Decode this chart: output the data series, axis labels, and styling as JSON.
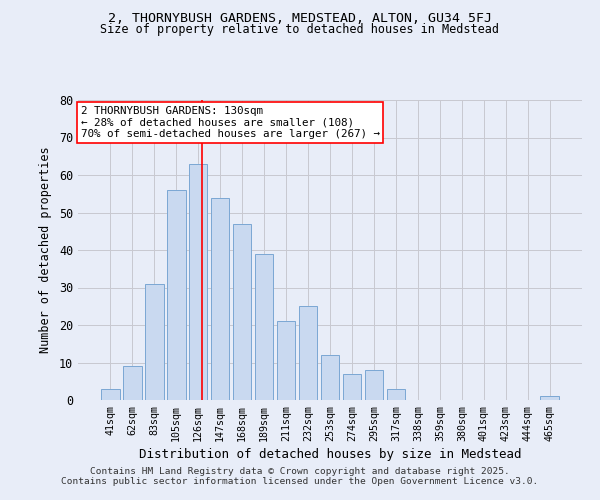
{
  "title1": "2, THORNYBUSH GARDENS, MEDSTEAD, ALTON, GU34 5FJ",
  "title2": "Size of property relative to detached houses in Medstead",
  "xlabel": "Distribution of detached houses by size in Medstead",
  "ylabel": "Number of detached properties",
  "bin_labels": [
    "41sqm",
    "62sqm",
    "83sqm",
    "105sqm",
    "126sqm",
    "147sqm",
    "168sqm",
    "189sqm",
    "211sqm",
    "232sqm",
    "253sqm",
    "274sqm",
    "295sqm",
    "317sqm",
    "338sqm",
    "359sqm",
    "380sqm",
    "401sqm",
    "423sqm",
    "444sqm",
    "465sqm"
  ],
  "values": [
    3,
    9,
    31,
    56,
    63,
    54,
    47,
    39,
    21,
    25,
    12,
    7,
    8,
    3,
    0,
    0,
    0,
    0,
    0,
    0,
    1
  ],
  "bar_color": "#c9d9f0",
  "bar_edge_color": "#7ba7d4",
  "grid_color": "#c8c8d0",
  "background_color": "#e8edf8",
  "vline_color": "red",
  "annotation_text": "2 THORNYBUSH GARDENS: 130sqm\n← 28% of detached houses are smaller (108)\n70% of semi-detached houses are larger (267) →",
  "annotation_box_color": "white",
  "annotation_box_edge": "red",
  "ylim": [
    0,
    80
  ],
  "yticks": [
    0,
    10,
    20,
    30,
    40,
    50,
    60,
    70,
    80
  ],
  "footnote1": "Contains HM Land Registry data © Crown copyright and database right 2025.",
  "footnote2": "Contains public sector information licensed under the Open Government Licence v3.0."
}
